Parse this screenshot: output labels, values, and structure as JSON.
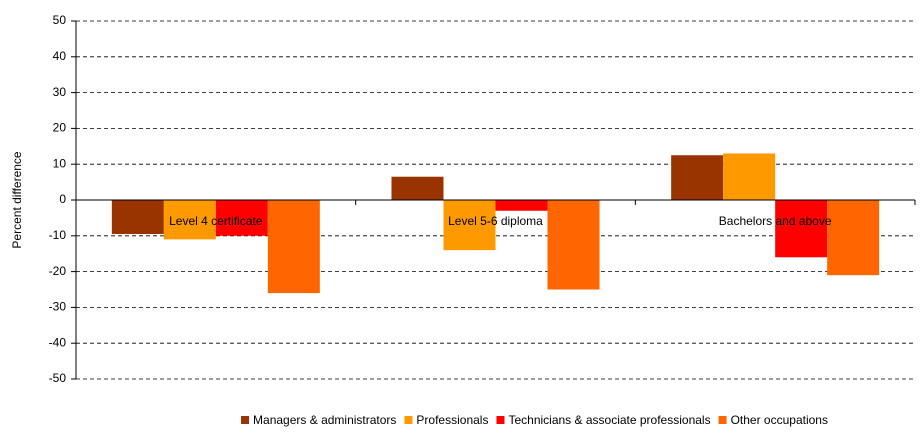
{
  "chart_data": {
    "type": "bar",
    "y_label": "Percent difference",
    "categories": [
      "Level 4 certificate",
      "Level 5-6 diploma",
      "Bachelors and above"
    ],
    "series": [
      {
        "name": "Managers & administrators",
        "color": "#993300",
        "values": [
          -9.5,
          6.5,
          12.5
        ]
      },
      {
        "name": "Professionals",
        "color": "#FF9900",
        "values": [
          -11,
          -14,
          13
        ]
      },
      {
        "name": "Technicians & associate professionals",
        "color": "#FF0000",
        "values": [
          -10,
          -3,
          -16
        ]
      },
      {
        "name": "Other occupations",
        "color": "#FF6600",
        "values": [
          -26,
          -25,
          -21
        ]
      }
    ],
    "ylim": [
      -50,
      50
    ],
    "yticks": [
      -50,
      -40,
      -30,
      -20,
      -10,
      0,
      10,
      20,
      30,
      40,
      50
    ],
    "grid": true,
    "legend": "bottom"
  }
}
